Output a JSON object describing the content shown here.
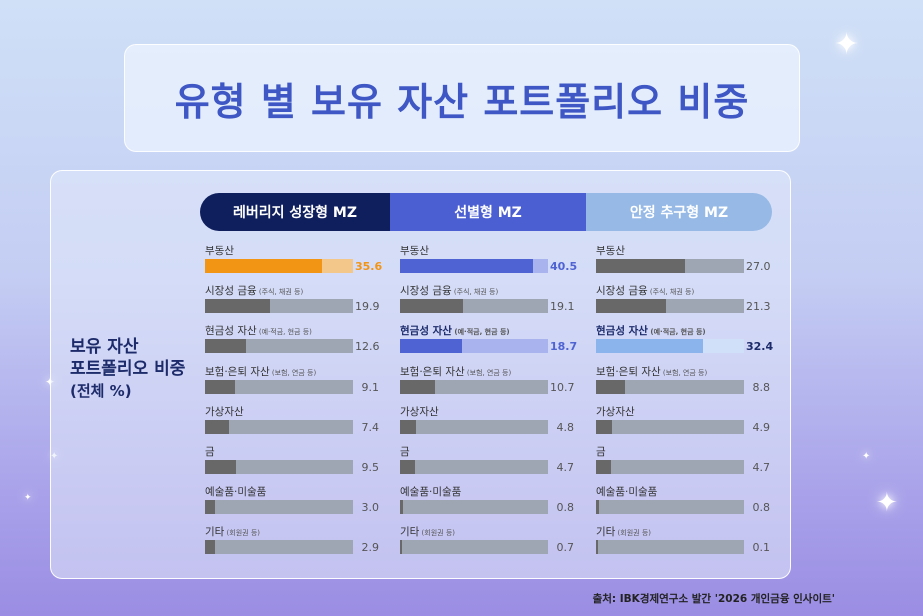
{
  "title": "유형 별 보유 자산 포트폴리오 비중",
  "side_label": {
    "line1": "보유 자산",
    "line2": "포트폴리오 비중",
    "line3": "(전체 %)"
  },
  "source": "출처: IBK경제연구소 발간 '2026 개인금융 인사이트'",
  "colors": {
    "header1": "#0f1f5e",
    "header2": "#4c5fd2",
    "header3": "#96b9e6",
    "accent1": "#f29414",
    "accent2": "#4f63d2",
    "accent3": "#8cb4ec",
    "bar_default": "#686868",
    "track_default": "#9ea5b3"
  },
  "chart_data": {
    "type": "bar",
    "categories": [
      {
        "name": "부동산",
        "note": ""
      },
      {
        "name": "시장성 금융",
        "note": "(주식, 채권 등)"
      },
      {
        "name": "현금성 자산",
        "note": "(예·적금, 현금 등)"
      },
      {
        "name": "보험·은퇴 자산",
        "note": "(보험, 연금 등)"
      },
      {
        "name": "가상자산",
        "note": ""
      },
      {
        "name": "금",
        "note": ""
      },
      {
        "name": "예술품·미술품",
        "note": ""
      },
      {
        "name": "기타",
        "note": "(회원권 등)"
      }
    ],
    "series": [
      {
        "name": "레버리지 성장형 MZ",
        "values": [
          "35.6",
          "19.9",
          "12.6",
          "9.1",
          "7.4",
          "9.5",
          "3.0",
          "2.9"
        ],
        "highlight_index": 0
      },
      {
        "name": "선별형 MZ",
        "values": [
          "40.5",
          "19.1",
          "18.7",
          "10.7",
          "4.8",
          "4.7",
          "0.8",
          "0.7"
        ],
        "highlight_index": [
          0,
          2
        ]
      },
      {
        "name": "안정 추구형 MZ",
        "values": [
          "27.0",
          "21.3",
          "32.4",
          "8.8",
          "4.9",
          "4.7",
          "0.8",
          "0.1"
        ],
        "highlight_index": 2
      }
    ],
    "xlim": [
      0,
      45
    ]
  }
}
